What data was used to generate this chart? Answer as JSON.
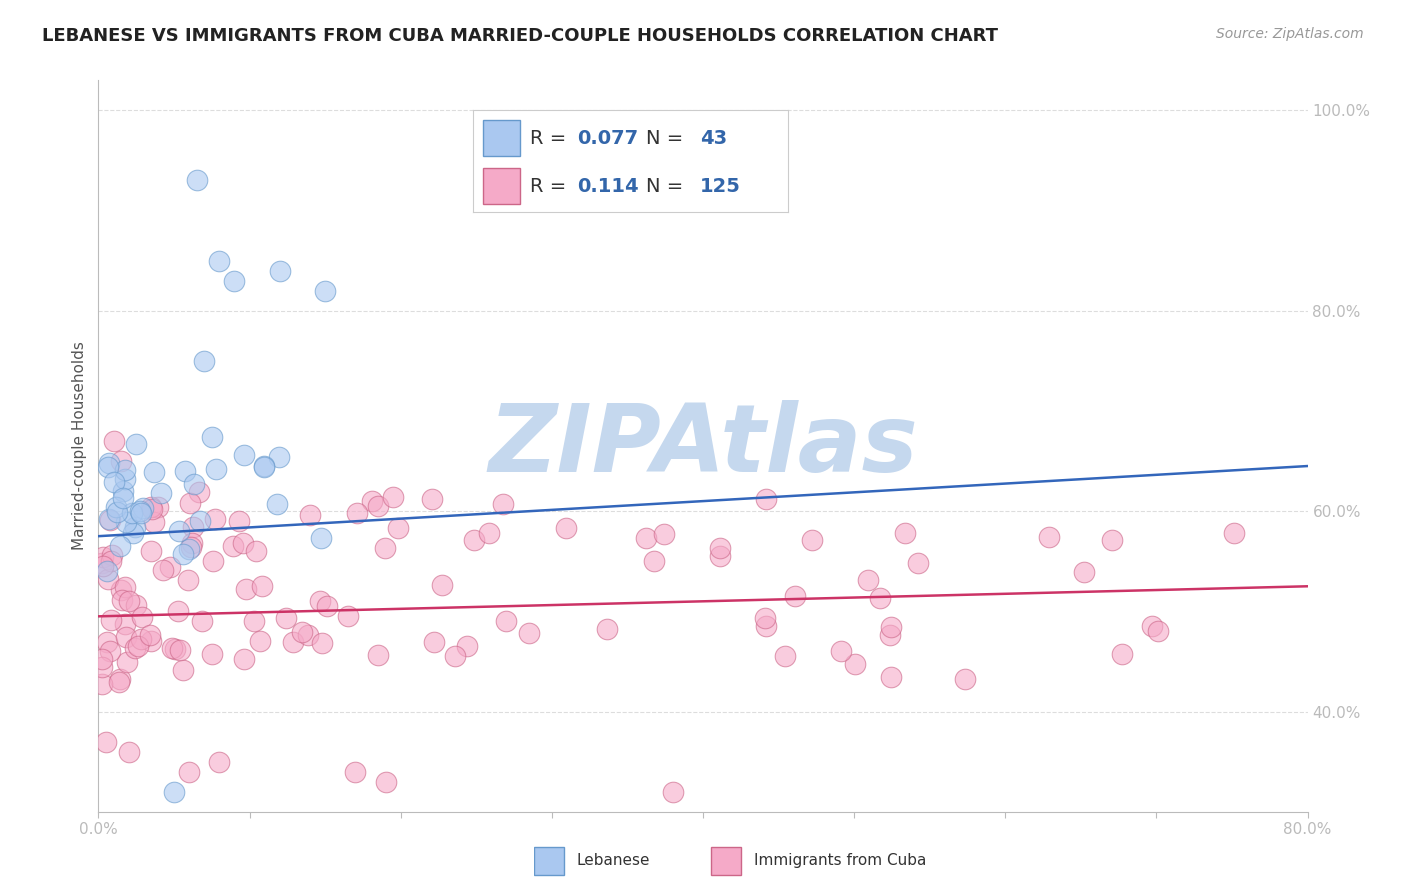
{
  "title": "LEBANESE VS IMMIGRANTS FROM CUBA MARRIED-COUPLE HOUSEHOLDS CORRELATION CHART",
  "source": "Source: ZipAtlas.com",
  "ylabel": "Married-couple Households",
  "legend_entries": [
    {
      "label": "Lebanese",
      "R": 0.077,
      "N": 43,
      "color": "#aac8f0",
      "edge": "#6699cc"
    },
    {
      "label": "Immigrants from Cuba",
      "R": 0.114,
      "N": 125,
      "color": "#f5aac8",
      "edge": "#cc6688"
    }
  ],
  "blue_scatter_color": "#aac8f0",
  "blue_scatter_edge": "#6699cc",
  "pink_scatter_color": "#f5aac8",
  "pink_scatter_edge": "#cc6688",
  "blue_line_color": "#3366bb",
  "pink_line_color": "#cc3366",
  "watermark": "ZIPAtlas",
  "watermark_color": "#c5d8ee",
  "xlim": [
    0.0,
    0.8
  ],
  "ylim": [
    0.3,
    1.03
  ],
  "yticks": [
    0.4,
    0.6,
    0.8,
    1.0
  ],
  "ytick_labels": [
    "40.0%",
    "60.0%",
    "80.0%",
    "100.0%"
  ],
  "blue_trend": [
    0.575,
    0.645
  ],
  "pink_trend": [
    0.495,
    0.525
  ],
  "title_fontsize": 13,
  "source_fontsize": 10,
  "legend_R_color": "#3366aa",
  "legend_N_color": "#3366aa",
  "background_color": "#ffffff",
  "grid_color": "#dddddd",
  "axis_color": "#bbbbbb"
}
